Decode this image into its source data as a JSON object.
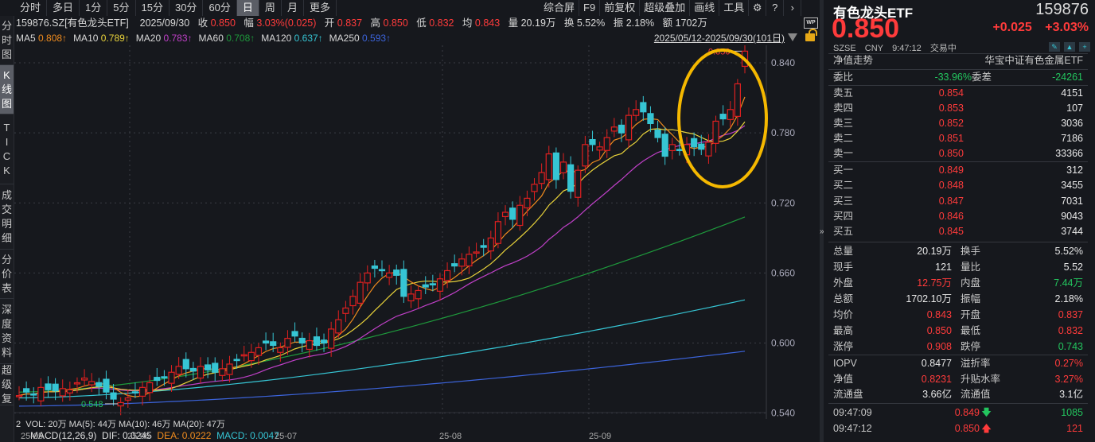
{
  "period_tabs": [
    "分时",
    "多日",
    "1分",
    "5分",
    "15分",
    "30分",
    "60分",
    "日",
    "周",
    "月",
    "更多"
  ],
  "period_active": 7,
  "toolbar": [
    "综合屏",
    "F9",
    "前复权",
    "超级叠加",
    "画线",
    "工具"
  ],
  "toolbar_icons": [
    "gear-icon",
    "help-icon",
    "chevron-right-icon"
  ],
  "side_tabs": [
    {
      "label": "分时图",
      "active": false
    },
    {
      "label": "K线图",
      "active": true
    },
    {
      "label": "TICK",
      "active": false
    },
    {
      "label": "成交明细",
      "active": false
    },
    {
      "label": "分价表",
      "active": false
    },
    {
      "label": "深度资料",
      "active": false
    },
    {
      "label": "超级复",
      "active": false
    }
  ],
  "info": {
    "symbol": "159876.SZ[有色龙头ETF]",
    "date": "2025/09/30",
    "close_label": "收",
    "close": "0.850",
    "chg_label": "幅",
    "chg": "3.03%(0.025)",
    "open_label": "开",
    "open": "0.837",
    "high_label": "高",
    "high": "0.850",
    "low_label": "低",
    "low": "0.832",
    "avg_label": "均",
    "avg": "0.843",
    "vol_label": "量",
    "vol": "20.19万",
    "turn_label": "换",
    "turn": "5.52%",
    "amp_label": "振",
    "amp": "2.18%",
    "amt_label": "额",
    "amt": "1702万"
  },
  "ma": [
    {
      "name": "MA5",
      "value": "0.808↑",
      "color": "#f08c1e"
    },
    {
      "name": "MA10",
      "value": "0.789↑",
      "color": "#e8d23a"
    },
    {
      "name": "MA20",
      "value": "0.783↑",
      "color": "#c040c8"
    },
    {
      "name": "MA60",
      "value": "0.708↑",
      "color": "#1e9a3c"
    },
    {
      "name": "MA120",
      "value": "0.637↑",
      "color": "#36c5d4"
    },
    {
      "name": "MA250",
      "value": "0.593↑",
      "color": "#3c64dc"
    }
  ],
  "range_label": "2025/05/12-2025/09/30(101日)",
  "wp_label": "WP",
  "chart_data": {
    "type": "candlestick",
    "y_ticks": [
      "0.840",
      "0.780",
      "0.720",
      "0.660",
      "0.600",
      "0.540"
    ],
    "x_ticks": [
      "25-05",
      "25-06",
      "25-07",
      "25-08",
      "25-09"
    ],
    "max_label": "0.850",
    "min_label": "0.548",
    "ylim": [
      0.535,
      0.855
    ]
  },
  "vol_line": {
    "text": "VOL: 20万  MA(5): 44万  MA(10): 46万  MA(20): 47万",
    "prefix": "2"
  },
  "macd": {
    "title": "MACD(12,26,9)",
    "dif": "DIF: 0.0245",
    "dea": "DEA: 0.0222",
    "macd": "MACD: 0.0047"
  },
  "panel": {
    "name": "有色龙头ETF",
    "code": "159876",
    "price": "0.850",
    "change": "+0.025",
    "change_pct": "+3.03%",
    "exchange": "SZSE",
    "currency": "CNY",
    "time": "9:47:12",
    "status": "交易中",
    "nav_trend": "净值走势",
    "fund_full": "华宝中证有色金属ETF",
    "weibi_label": "委比",
    "weibi": "-33.96%",
    "weicha_label": "委差",
    "weicha": "-24261",
    "asks": [
      {
        "label": "卖五",
        "price": "0.854",
        "vol": "4151"
      },
      {
        "label": "卖四",
        "price": "0.853",
        "vol": "107"
      },
      {
        "label": "卖三",
        "price": "0.852",
        "vol": "3036"
      },
      {
        "label": "卖二",
        "price": "0.851",
        "vol": "7186"
      },
      {
        "label": "卖一",
        "price": "0.850",
        "vol": "33366"
      }
    ],
    "bids": [
      {
        "label": "买一",
        "price": "0.849",
        "vol": "312"
      },
      {
        "label": "买二",
        "price": "0.848",
        "vol": "3455"
      },
      {
        "label": "买三",
        "price": "0.847",
        "vol": "7031"
      },
      {
        "label": "买四",
        "price": "0.846",
        "vol": "9043"
      },
      {
        "label": "买五",
        "price": "0.845",
        "vol": "3744"
      }
    ],
    "stats": [
      {
        "l1": "总量",
        "v1": "20.19万",
        "c1": "white",
        "l2": "换手",
        "v2": "5.52%",
        "c2": "white"
      },
      {
        "l1": "现手",
        "v1": "121",
        "c1": "white",
        "l2": "量比",
        "v2": "5.52",
        "c2": "white"
      },
      {
        "l1": "外盘",
        "v1": "12.75万",
        "c1": "red",
        "l2": "内盘",
        "v2": "7.44万",
        "c2": "green"
      },
      {
        "l1": "总额",
        "v1": "1702.10万",
        "c1": "white",
        "l2": "振幅",
        "v2": "2.18%",
        "c2": "white"
      },
      {
        "l1": "均价",
        "v1": "0.843",
        "c1": "red",
        "l2": "开盘",
        "v2": "0.837",
        "c2": "red"
      },
      {
        "l1": "最高",
        "v1": "0.850",
        "c1": "red",
        "l2": "最低",
        "v2": "0.832",
        "c2": "red"
      },
      {
        "l1": "涨停",
        "v1": "0.908",
        "c1": "red",
        "l2": "跌停",
        "v2": "0.743",
        "c2": "green"
      }
    ],
    "fund": [
      {
        "l1": "IOPV",
        "v1": "0.8477",
        "c1": "white",
        "l2": "溢折率",
        "v2": "0.27%",
        "c2": "red"
      },
      {
        "l1": "净值",
        "v1": "0.8231",
        "c1": "red",
        "l2": "升贴水率",
        "v2": "3.27%",
        "c2": "red"
      },
      {
        "l1": "流通盘",
        "v1": "3.66亿",
        "c1": "white",
        "l2": "流通值",
        "v2": "3.1亿",
        "c2": "white"
      }
    ],
    "ticks": [
      {
        "time": "09:47:09",
        "price": "0.849",
        "dir": "down",
        "vol": "1085"
      },
      {
        "time": "09:47:12",
        "price": "0.850",
        "dir": "up",
        "vol": "121"
      }
    ]
  }
}
